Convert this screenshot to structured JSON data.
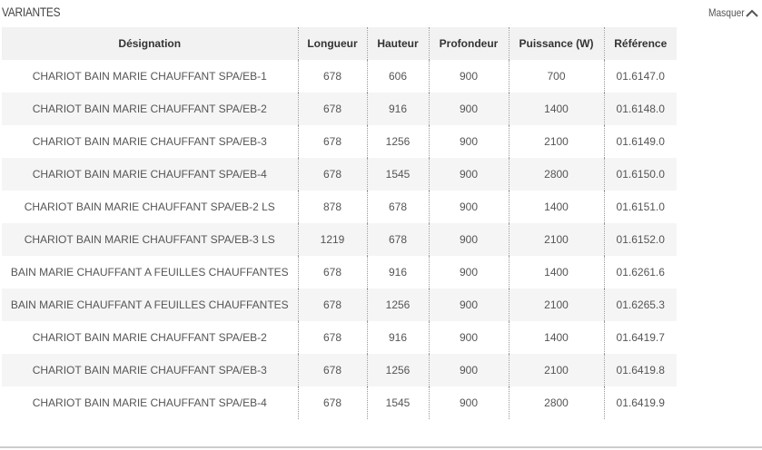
{
  "header": {
    "title": "VARIANTES",
    "toggle": "Masquer"
  },
  "table": {
    "columns": [
      "Désignation",
      "Longueur",
      "Hauteur",
      "Profondeur",
      "Puissance (W)",
      "Référence"
    ],
    "rows": [
      [
        "CHARIOT BAIN MARIE CHAUFFANT SPA/EB-1",
        "678",
        "606",
        "900",
        "700",
        "01.6147.0"
      ],
      [
        "CHARIOT BAIN MARIE CHAUFFANT SPA/EB-2",
        "678",
        "916",
        "900",
        "1400",
        "01.6148.0"
      ],
      [
        "CHARIOT BAIN MARIE CHAUFFANT SPA/EB-3",
        "678",
        "1256",
        "900",
        "2100",
        "01.6149.0"
      ],
      [
        "CHARIOT BAIN MARIE CHAUFFANT SPA/EB-4",
        "678",
        "1545",
        "900",
        "2800",
        "01.6150.0"
      ],
      [
        "CHARIOT BAIN MARIE CHAUFFANT SPA/EB-2 LS",
        "878",
        "678",
        "900",
        "1400",
        "01.6151.0"
      ],
      [
        "CHARIOT BAIN MARIE CHAUFFANT SPA/EB-3 LS",
        "1219",
        "678",
        "900",
        "2100",
        "01.6152.0"
      ],
      [
        "BAIN MARIE CHAUFFANT A FEUILLES CHAUFFANTES",
        "678",
        "916",
        "900",
        "1400",
        "01.6261.6"
      ],
      [
        "BAIN MARIE CHAUFFANT A FEUILLES CHAUFFANTES",
        "678",
        "1256",
        "900",
        "2100",
        "01.6265.3"
      ],
      [
        "CHARIOT BAIN MARIE CHAUFFANT SPA/EB-2",
        "678",
        "916",
        "900",
        "1400",
        "01.6419.7"
      ],
      [
        "CHARIOT BAIN MARIE CHAUFFANT SPA/EB-3",
        "678",
        "1256",
        "900",
        "2100",
        "01.6419.8"
      ],
      [
        "CHARIOT BAIN MARIE CHAUFFANT SPA/EB-4",
        "678",
        "1545",
        "900",
        "2800",
        "01.6419.9"
      ]
    ]
  }
}
